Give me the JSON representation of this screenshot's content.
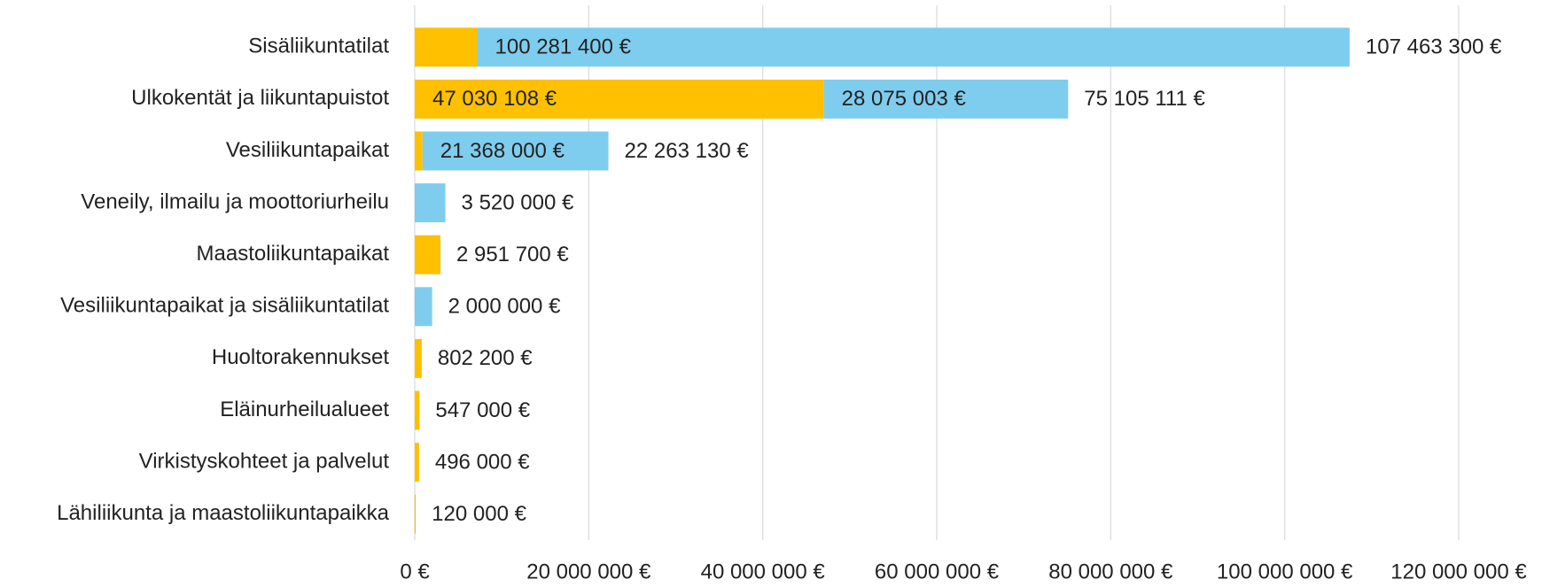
{
  "chart_data": {
    "type": "stacked_barh",
    "categories": [
      "Sisäliikuntatilat",
      "Ulkokentät ja liikuntapuistot",
      "Vesiliikuntapaikat",
      "Veneily, ilmailu ja moottoriurheilu",
      "Maastoliikuntapaikat",
      "Vesiliikuntapaikat ja sisäliikuntatilat",
      "Huoltorakennukset",
      "Eläinurheilualueet",
      "Virkistyskohteet ja  palvelut",
      "Lähiliikunta ja maastoliikuntapaikka"
    ],
    "series": [
      {
        "color": "#ffc000",
        "values": [
          7181900,
          47030108,
          895130,
          0,
          2951700,
          0,
          802200,
          547000,
          496000,
          120000
        ],
        "value_labels": [
          null,
          "47 030 108 €",
          null,
          null,
          null,
          null,
          null,
          null,
          null,
          null
        ]
      },
      {
        "color": "#7fcdee",
        "values": [
          100281400,
          28075003,
          21368000,
          3520000,
          0,
          2000000,
          0,
          0,
          0,
          0
        ],
        "value_labels": [
          "100 281 400 €",
          "28 075 003 €",
          "21 368 000 €",
          null,
          null,
          null,
          null,
          null,
          null,
          null
        ]
      }
    ],
    "totals": [
      107463300,
      75105111,
      22263130,
      3520000,
      2951700,
      2000000,
      802200,
      547000,
      496000,
      120000
    ],
    "total_labels": [
      "107 463 300 €",
      "75 105 111 €",
      "22 263 130 €",
      "3 520 000 €",
      "2 951 700 €",
      "2 000 000 €",
      "802 200 €",
      "547 000 €",
      "496 000 €",
      "120 000 €"
    ],
    "xlim": [
      0,
      120000000
    ],
    "xticks": [
      {
        "value": 0,
        "label": "0 €"
      },
      {
        "value": 20000000,
        "label": "20 000 000 €"
      },
      {
        "value": 40000000,
        "label": "40 000 000 €"
      },
      {
        "value": 60000000,
        "label": "60 000 000 €"
      },
      {
        "value": 80000000,
        "label": "80 000 000 €"
      },
      {
        "value": 100000000,
        "label": "100 000 000 €"
      },
      {
        "value": 120000000,
        "label": "120 000 000 €"
      }
    ],
    "grid": true
  }
}
